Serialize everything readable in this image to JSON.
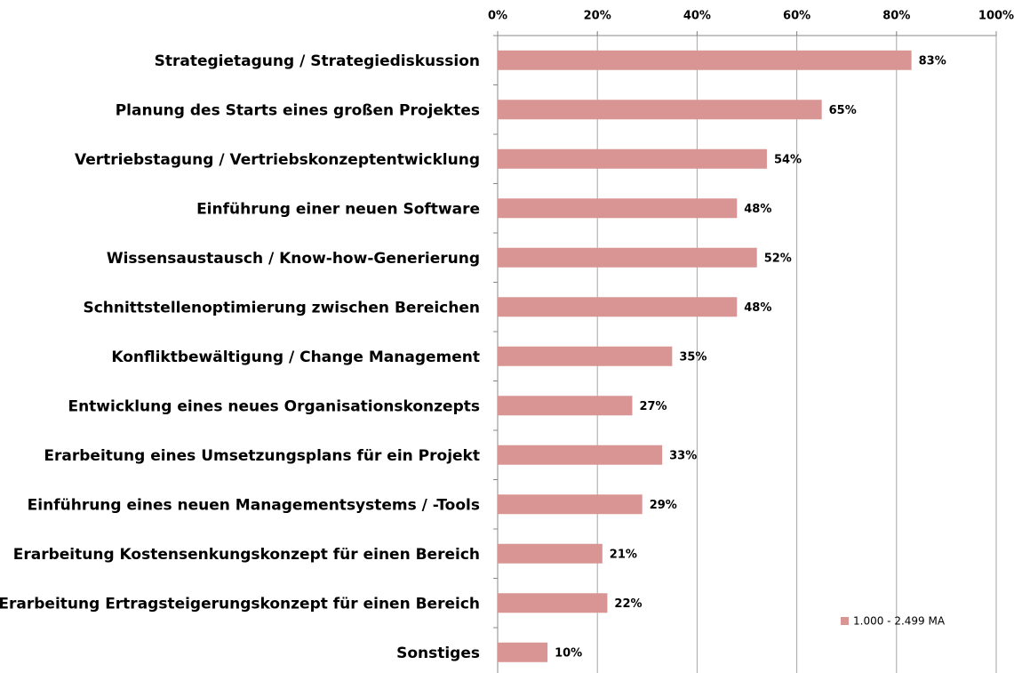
{
  "chart_data": {
    "type": "bar",
    "orientation": "horizontal",
    "categories": [
      "Strategietagung / Strategiediskussion",
      "Planung des Starts eines großen Projektes",
      "Vertriebstagung / Vertriebskonzeptentwicklung",
      "Einführung einer neuen Software",
      "Wissensaustausch / Know-how-Generierung",
      "Schnittstellenoptimierung zwischen Bereichen",
      "Konfliktbewältigung / Change Management",
      "Entwicklung eines neues Organisationskonzepts",
      "Erarbeitung eines Umsetzungsplans für ein Projekt",
      "Einführung eines neuen Managementsystems / -Tools",
      "Erarbeitung Kostensenkungskonzept für einen Bereich",
      "Erarbeitung Ertragsteigerungskonzept für einen Bereich",
      "Sonstiges"
    ],
    "series": [
      {
        "name": "1.000 - 2.499 MA",
        "color": "#d99594",
        "values": [
          83,
          65,
          54,
          48,
          52,
          48,
          35,
          27,
          33,
          29,
          21,
          22,
          10
        ],
        "value_labels": [
          "83%",
          "65%",
          "54%",
          "48%",
          "52%",
          "48%",
          "35%",
          "27%",
          "33%",
          "29%",
          "21%",
          "22%",
          "10%"
        ]
      }
    ],
    "xlim": [
      0,
      100
    ],
    "xticks": [
      {
        "value": 0,
        "label": "0%"
      },
      {
        "value": 20,
        "label": "20%"
      },
      {
        "value": 40,
        "label": "40%"
      },
      {
        "value": 60,
        "label": "60%"
      },
      {
        "value": 80,
        "label": "80%"
      },
      {
        "value": 100,
        "label": "100%"
      }
    ],
    "grid": true,
    "legend": "lower right"
  }
}
